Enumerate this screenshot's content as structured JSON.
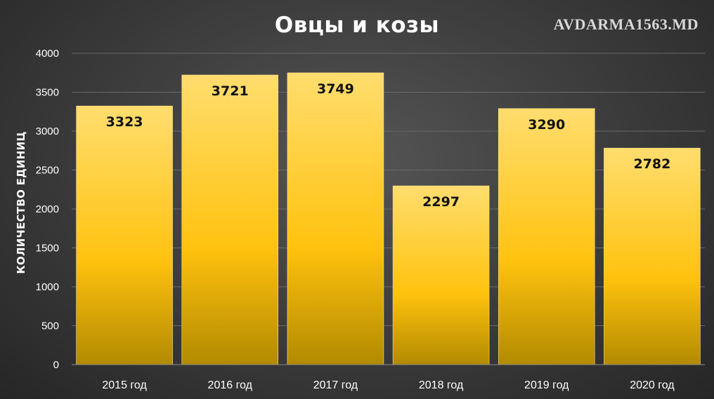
{
  "watermark": "AVDARMA1563.MD",
  "colors": {
    "bar_top": "#ffdd6e",
    "bar_mid": "#ffc20e",
    "bar_bottom": "#b28a00"
  },
  "chart_data": {
    "type": "bar",
    "title": "Овцы и козы",
    "xlabel": "",
    "ylabel": "КОЛИЧЕСТВО ЕДИНИЦ",
    "categories": [
      "2015 год",
      "2016 год",
      "2017 год",
      "2018 год",
      "2019 год",
      "2020 год"
    ],
    "values": [
      3323,
      3721,
      3749,
      2297,
      3290,
      2782
    ],
    "data_labels": [
      "3323",
      "3721",
      "3749",
      "2297",
      "3290",
      "2782"
    ],
    "ylim": [
      0,
      4000
    ],
    "yticks": [
      "0",
      "500",
      "1000",
      "1500",
      "2000",
      "2500",
      "3000",
      "3500",
      "4000"
    ],
    "grid": true,
    "legend": "none"
  }
}
